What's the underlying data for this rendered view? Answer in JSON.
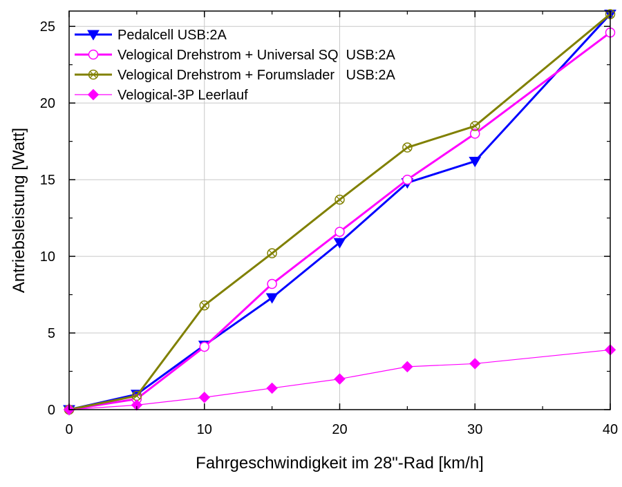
{
  "chart_data": {
    "type": "line",
    "title": "",
    "xlabel": "Fahrgeschwindigkeit im 28\"-Rad [km/h]",
    "ylabel": "Antriebsleistung [Watt]",
    "xlim": [
      0,
      40
    ],
    "ylim": [
      0,
      26
    ],
    "xticks": [
      0,
      10,
      20,
      30,
      40
    ],
    "xtick_labels": [
      "0",
      "10",
      "20",
      "30",
      "40"
    ],
    "yticks": [
      0,
      5,
      10,
      15,
      20,
      25
    ],
    "ytick_labels": [
      "0",
      "5",
      "10",
      "15",
      "20",
      "25"
    ],
    "grid": true,
    "legend_position": "top-left",
    "series": [
      {
        "name": "Pedalcell USB:2A",
        "color": "#0000ff",
        "marker": "triangle-down",
        "x": [
          0,
          5,
          10,
          15,
          20,
          25,
          30,
          40
        ],
        "y": [
          0,
          1.0,
          4.2,
          7.3,
          10.9,
          14.8,
          16.2,
          25.8
        ]
      },
      {
        "name": "Velogical Drehstrom + Universal SQ  USB:2A",
        "color": "#ff00ff",
        "marker": "circle-open",
        "x": [
          0,
          5,
          10,
          15,
          20,
          25,
          30,
          40
        ],
        "y": [
          0,
          0.7,
          4.1,
          8.2,
          11.6,
          15.0,
          18.0,
          24.6
        ]
      },
      {
        "name": "Velogical Drehstrom + Forumslader   USB:2A",
        "color": "#808000",
        "marker": "circle-cross",
        "x": [
          0,
          5,
          10,
          15,
          20,
          25,
          30,
          40
        ],
        "y": [
          0,
          0.9,
          6.8,
          10.2,
          13.7,
          17.1,
          18.5,
          25.8
        ]
      },
      {
        "name": "Velogical-3P Leerlauf",
        "color": "#ff00ff",
        "marker": "diamond",
        "x": [
          0,
          5,
          10,
          15,
          20,
          25,
          30,
          40
        ],
        "y": [
          0,
          0.3,
          0.8,
          1.4,
          2.0,
          2.8,
          3.0,
          3.9
        ]
      }
    ]
  }
}
